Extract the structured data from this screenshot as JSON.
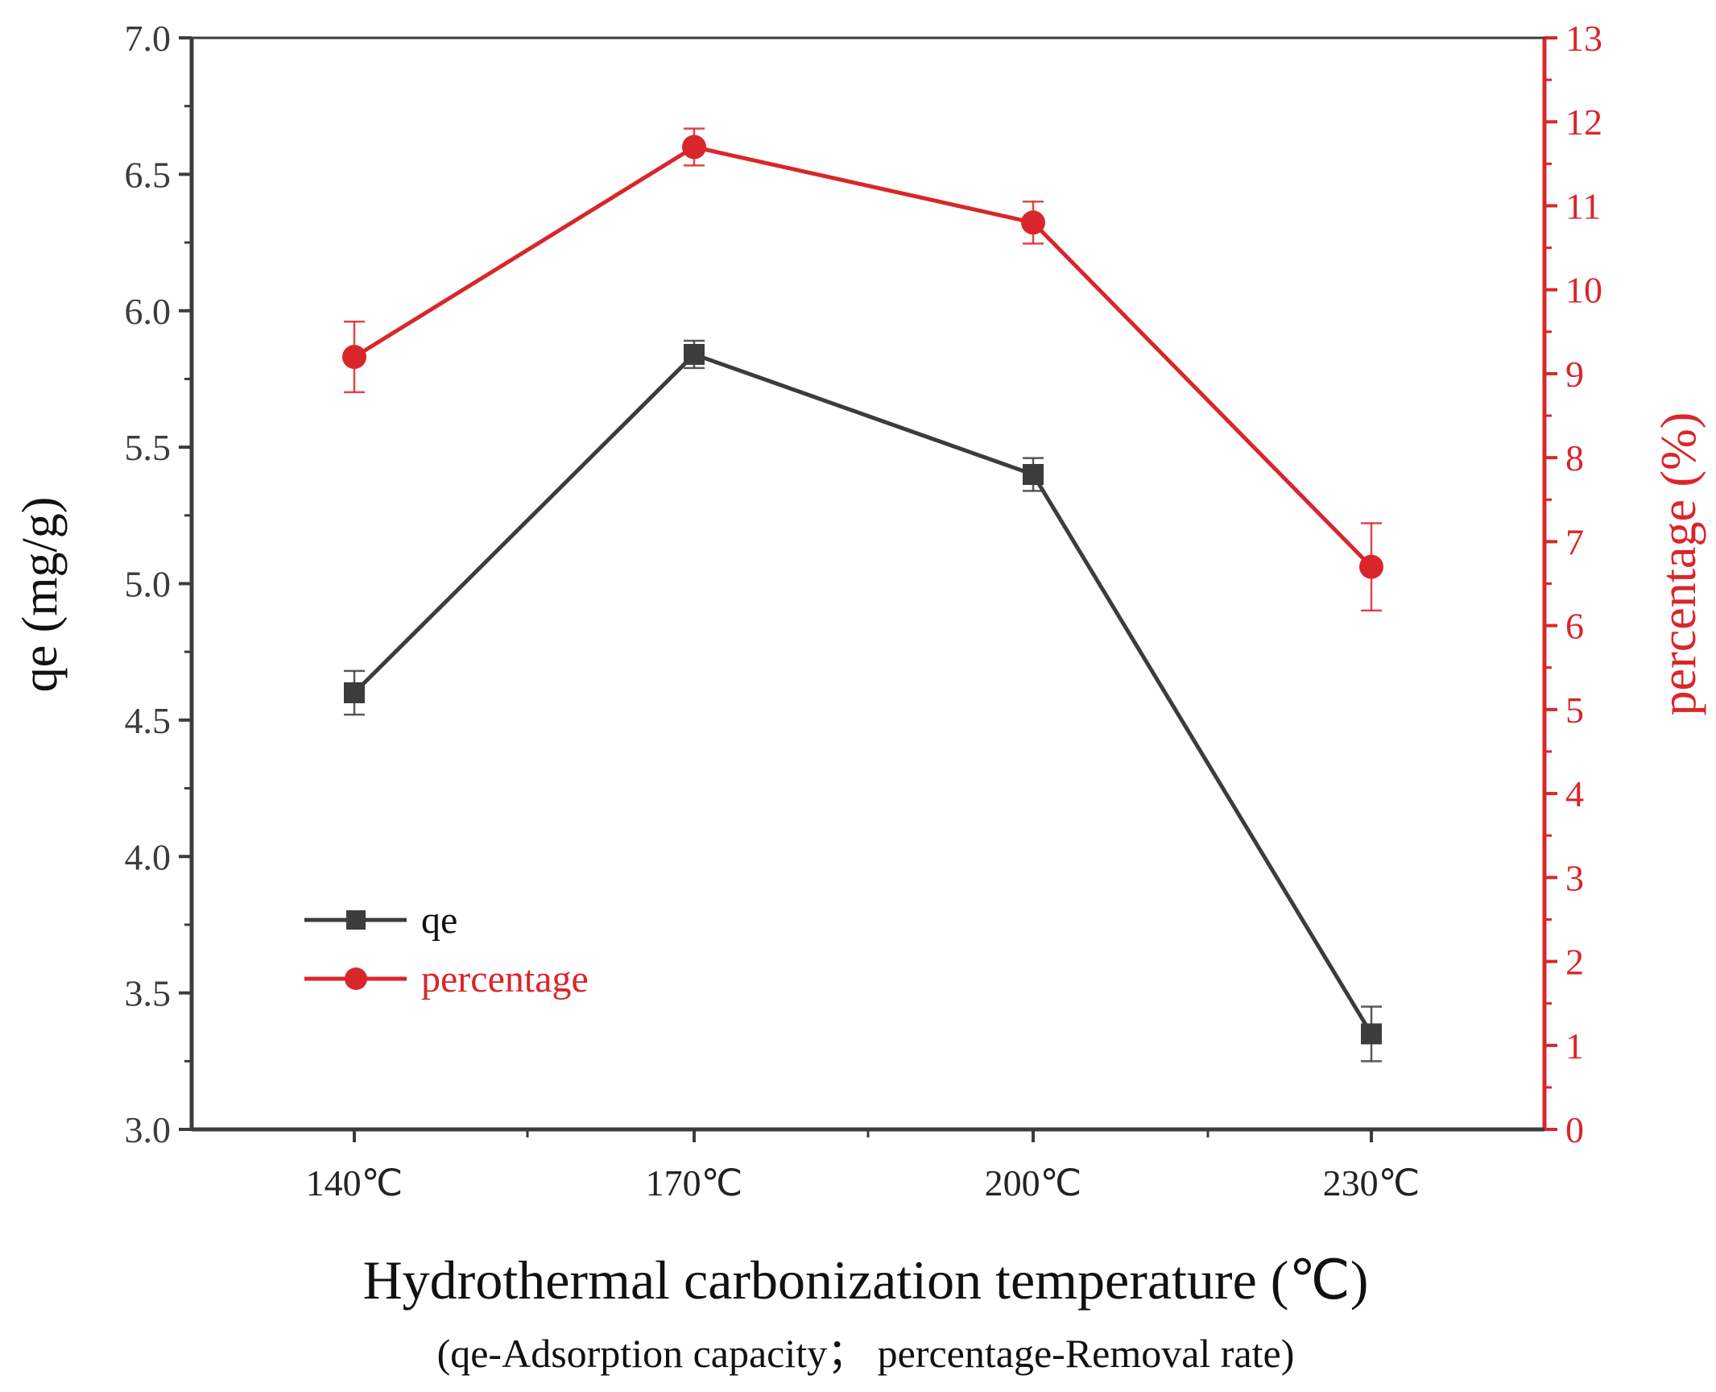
{
  "chart_data": {
    "type": "line",
    "categories": [
      "140℃",
      "170℃",
      "200℃",
      "230℃"
    ],
    "xlabel": "Hydrothermal carbonization temperature (℃)",
    "subtitle": "(qe-Adsorption capacity； percentage-Removal rate)",
    "y_left": {
      "label": "qe (mg/g)",
      "lim": [
        3.0,
        7.0
      ],
      "ticks": [
        "3.0",
        "3.5",
        "4.0",
        "4.5",
        "5.0",
        "5.5",
        "6.0",
        "6.5",
        "7.0"
      ],
      "color": "#3c3c3c"
    },
    "y_right": {
      "label": "percentage (%)",
      "lim": [
        0,
        13
      ],
      "ticks": [
        "0",
        "1",
        "2",
        "3",
        "4",
        "5",
        "6",
        "7",
        "8",
        "9",
        "10",
        "11",
        "12",
        "13"
      ],
      "color": "#d9262b"
    },
    "series": [
      {
        "name": "qe",
        "axis": "left",
        "color": "#3c3c3c",
        "marker": "square",
        "values": [
          4.6,
          5.84,
          5.4,
          3.35
        ],
        "errors": [
          0.08,
          0.05,
          0.06,
          0.1
        ]
      },
      {
        "name": "percentage",
        "axis": "right",
        "color": "#d9262b",
        "marker": "circle",
        "values": [
          9.2,
          11.7,
          10.8,
          6.7
        ],
        "errors": [
          0.42,
          0.22,
          0.25,
          0.52
        ]
      }
    ],
    "legend": [
      {
        "label": "qe",
        "color": "#3c3c3c",
        "marker": "square"
      },
      {
        "label": "percentage",
        "color": "#d9262b",
        "marker": "circle"
      }
    ],
    "legend_position": "lower-left",
    "grid": false
  }
}
